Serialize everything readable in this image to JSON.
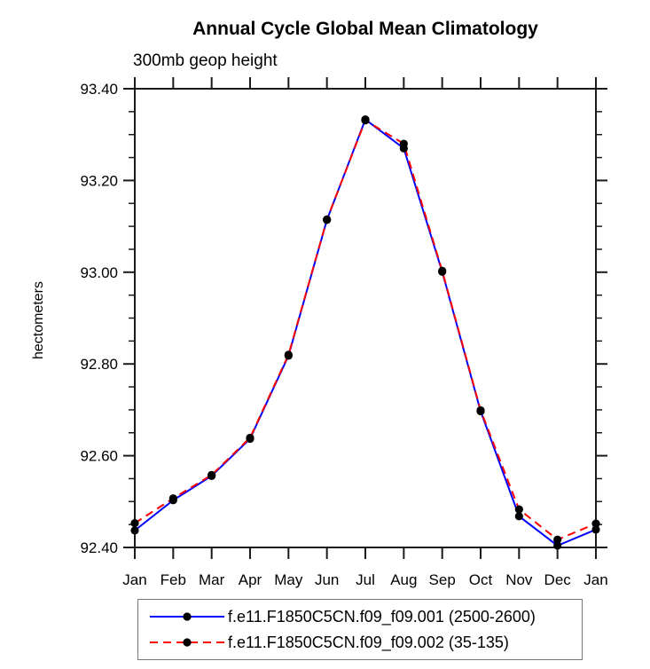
{
  "chart_data": {
    "type": "line",
    "title": "Annual Cycle Global Mean Climatology",
    "subtitle": "300mb geop height",
    "ylabel": "hectometers",
    "xlabel": "",
    "categories": [
      "Jan",
      "Feb",
      "Mar",
      "Apr",
      "May",
      "Jun",
      "Jul",
      "Aug",
      "Sep",
      "Oct",
      "Nov",
      "Dec",
      "Jan"
    ],
    "ylim": [
      92.4,
      93.4
    ],
    "y_major_step": 0.2,
    "y_minor_step": 0.05,
    "y_tick_labels": [
      "92.40",
      "92.60",
      "92.80",
      "93.00",
      "93.20",
      "93.40"
    ],
    "grid": false,
    "legend_position": "bottom",
    "marker": "black-dot",
    "series": [
      {
        "name": "f.e11.F1850C5CN.f09_f09.001 (2500-2600)",
        "color": "#0000ff",
        "style": "solid",
        "values": [
          92.437,
          92.503,
          92.556,
          92.637,
          92.818,
          93.114,
          93.333,
          93.27,
          93.001,
          92.697,
          92.468,
          92.404,
          92.439
        ]
      },
      {
        "name": "f.e11.F1850C5CN.f09_f09.002 (35-135)",
        "color": "#ff0000",
        "style": "dashed",
        "values": [
          92.453,
          92.507,
          92.558,
          92.639,
          92.82,
          93.115,
          93.331,
          93.28,
          93.003,
          92.699,
          92.483,
          92.417,
          92.452
        ]
      }
    ],
    "colors": {
      "frame": "#1a1a1a",
      "marker": "#000000",
      "text": "#000000",
      "legend_border": "#777777",
      "background": "#ffffff"
    }
  }
}
